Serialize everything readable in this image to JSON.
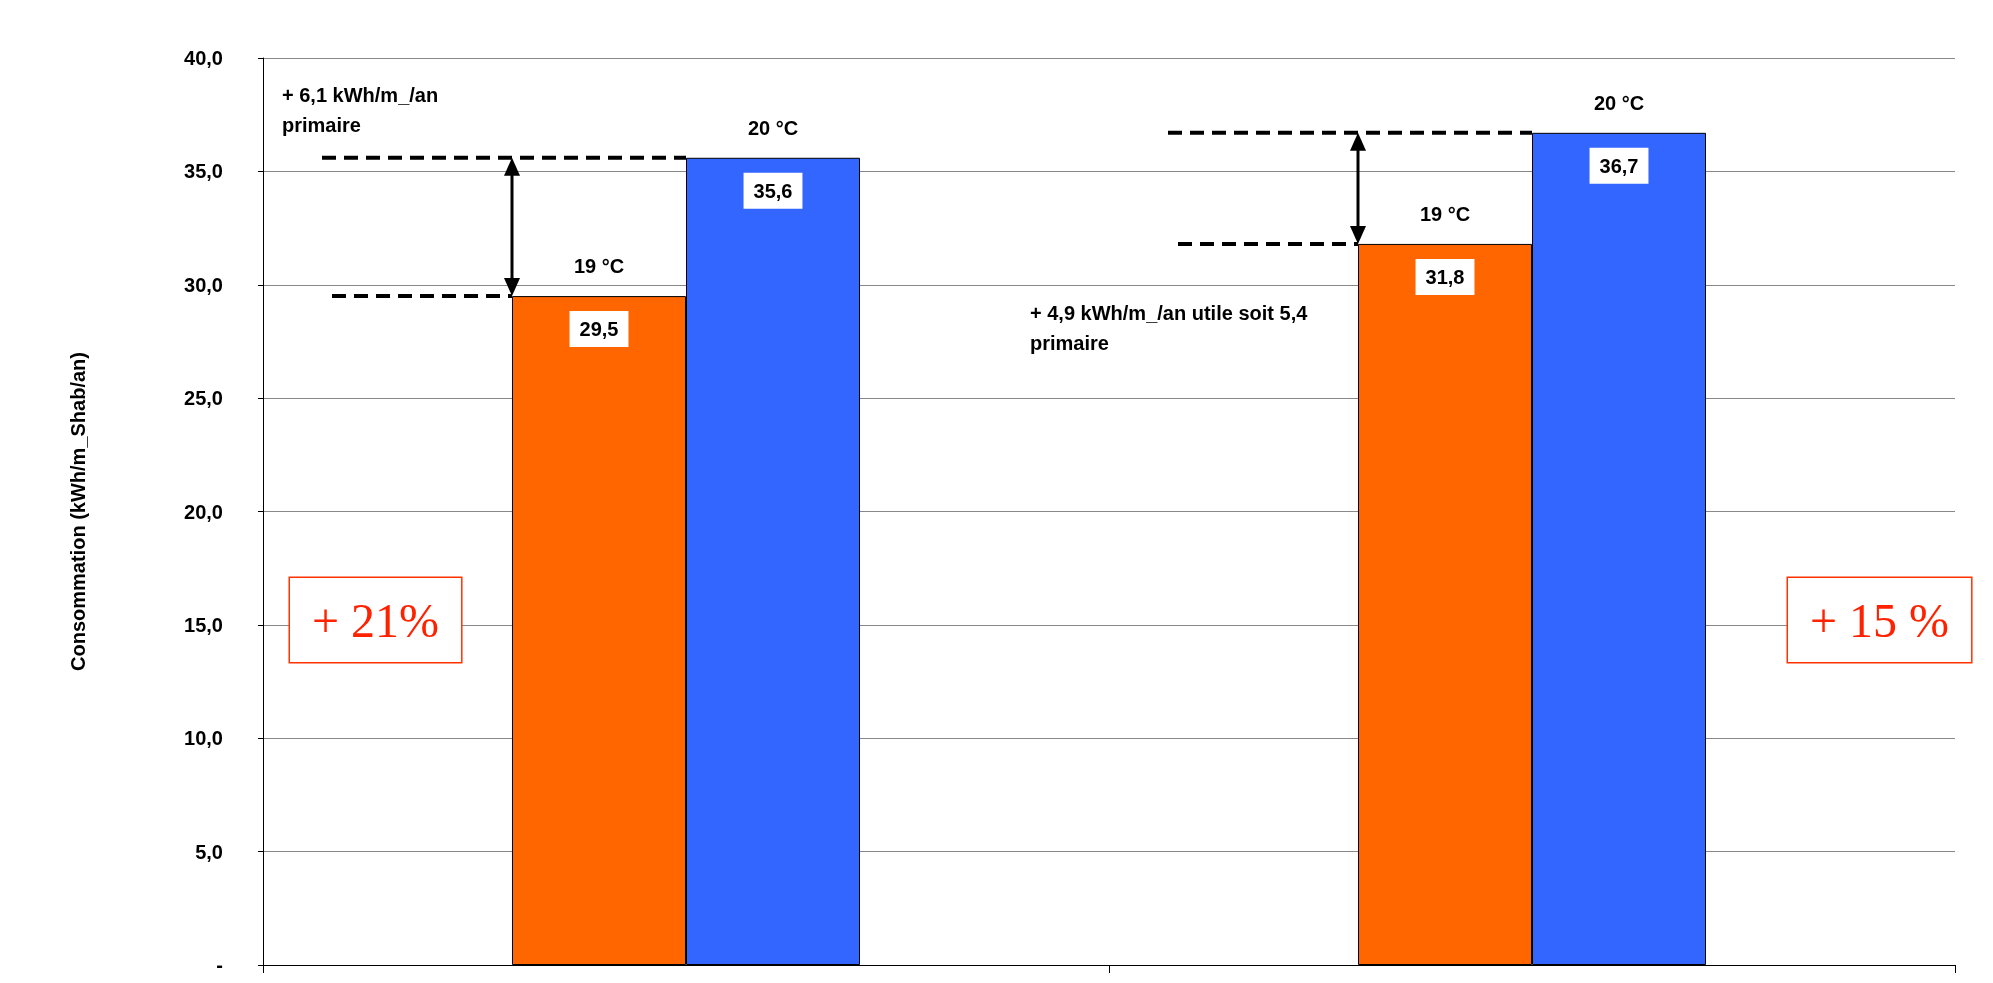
{
  "chart_data": {
    "type": "bar",
    "ylabel": "Consommation (kWh/m_Shab/an)",
    "categories": [
      null,
      null
    ],
    "series": [
      {
        "name": "19 °C",
        "color": "#ff6600",
        "values": [
          29.5,
          31.8
        ],
        "value_labels": [
          "29,5",
          "31,8"
        ]
      },
      {
        "name": "20 °C",
        "color": "#3366ff",
        "values": [
          35.6,
          36.7
        ],
        "value_labels": [
          "35,6",
          "36,7"
        ]
      }
    ],
    "ylim": [
      0,
      40
    ],
    "yticks": [
      {
        "value": 0,
        "label": "-"
      },
      {
        "value": 5,
        "label": "5,0"
      },
      {
        "value": 10,
        "label": "10,0"
      },
      {
        "value": 15,
        "label": "15,0"
      },
      {
        "value": 20,
        "label": "20,0"
      },
      {
        "value": 25,
        "label": "25,0"
      },
      {
        "value": 30,
        "label": "30,0"
      },
      {
        "value": 35,
        "label": "35,0"
      },
      {
        "value": 40,
        "label": "40,0"
      }
    ],
    "grid": "y",
    "legend": false,
    "ref_lines": [
      {
        "axis": "y",
        "value": 29.5,
        "line_style": "dashed"
      },
      {
        "axis": "y",
        "value": 35.6,
        "line_style": "dashed"
      },
      {
        "axis": "y",
        "value": 31.8,
        "line_style": "dashed"
      },
      {
        "axis": "y",
        "value": 36.7,
        "line_style": "dashed"
      }
    ],
    "annotations": [
      "+ 6,1 kWh/m_/an primaire",
      "+ 4,9 kWh/m_/an utile soit 5,4 primaire",
      "+ 21%",
      "+ 15 %"
    ]
  }
}
